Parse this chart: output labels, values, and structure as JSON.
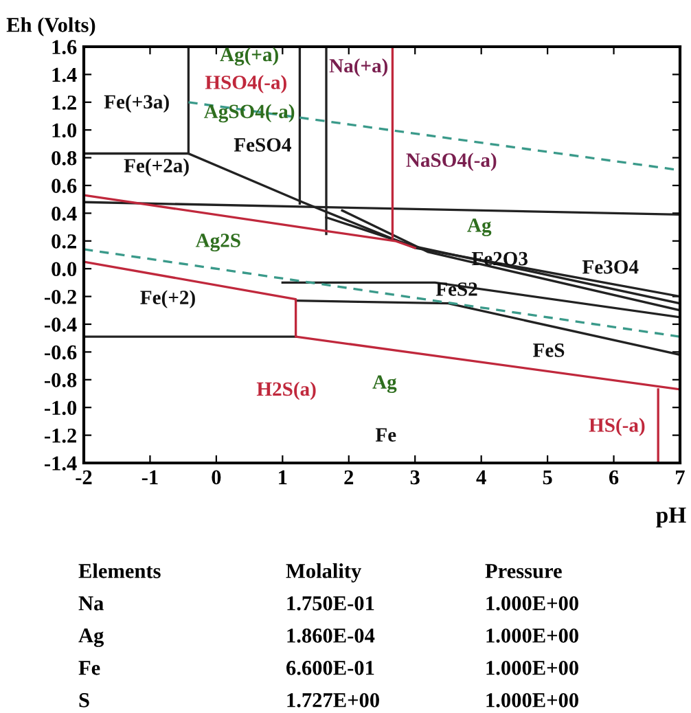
{
  "chart_data": {
    "type": "line",
    "xlabel": "pH",
    "ylabel": "Eh (Volts)",
    "xlim": [
      -2,
      7
    ],
    "ylim": [
      -1.4,
      1.6
    ],
    "xticks": [
      -2,
      -1,
      0,
      1,
      2,
      3,
      4,
      5,
      6,
      7
    ],
    "yticks": [
      {
        "value": -1.4,
        "label": "-1.4"
      },
      {
        "value": -1.2,
        "label": "-1.2"
      },
      {
        "value": -1.0,
        "label": "-1.0"
      },
      {
        "value": -0.8,
        "label": "-0.8"
      },
      {
        "value": -0.6,
        "label": "-0.6"
      },
      {
        "value": -0.4,
        "label": "-0.4"
      },
      {
        "value": -0.2,
        "label": "-0.2"
      },
      {
        "value": 0.0,
        "label": "0.0"
      },
      {
        "value": 0.2,
        "label": "0.2"
      },
      {
        "value": 0.4,
        "label": "0.4"
      },
      {
        "value": 0.6,
        "label": "0.6"
      },
      {
        "value": 0.8,
        "label": "0.8"
      },
      {
        "value": 1.0,
        "label": "1.0"
      },
      {
        "value": 1.2,
        "label": "1.2"
      },
      {
        "value": 1.4,
        "label": "1.4"
      },
      {
        "value": 1.6,
        "label": "1.6"
      }
    ],
    "grid": false,
    "legend": false,
    "marker": "none",
    "series": [
      {
        "color": "#222222",
        "line_style": "solid",
        "x": [
          -2,
          -0.42,
          -0.42
        ],
        "values": [
          0.83,
          0.83,
          1.6
        ]
      },
      {
        "color": "#222222",
        "line_style": "solid",
        "x": [
          -0.42,
          1.3,
          3.0,
          7
        ],
        "values": [
          0.83,
          0.48,
          0.15,
          -0.2
        ]
      },
      {
        "color": "#222222",
        "line_style": "solid",
        "x": [
          -2,
          7
        ],
        "values": [
          0.48,
          0.39
        ]
      },
      {
        "color": "#222222",
        "line_style": "solid",
        "x": [
          1.26,
          1.26
        ],
        "values": [
          1.6,
          0.47
        ]
      },
      {
        "color": "#222222",
        "line_style": "solid",
        "x": [
          1.66,
          1.66
        ],
        "values": [
          1.6,
          0.25
        ]
      },
      {
        "color": "#222222",
        "line_style": "solid",
        "x": [
          1.66,
          3.0,
          7
        ],
        "values": [
          0.37,
          0.16,
          -0.25
        ]
      },
      {
        "color": "#222222",
        "line_style": "solid",
        "x": [
          1.9,
          3.2,
          7
        ],
        "values": [
          0.42,
          0.12,
          -0.3
        ]
      },
      {
        "color": "#222222",
        "line_style": "solid",
        "x": [
          1.0,
          3.3,
          7
        ],
        "values": [
          -0.1,
          -0.1,
          -0.35
        ]
      },
      {
        "color": "#222222",
        "line_style": "solid",
        "x": [
          1.2,
          3.5,
          7
        ],
        "values": [
          -0.23,
          -0.25,
          -0.62
        ]
      },
      {
        "color": "#222222",
        "line_style": "solid",
        "x": [
          -2,
          1.2
        ],
        "values": [
          -0.49,
          -0.49
        ]
      },
      {
        "color": "#c0283c",
        "line_style": "solid",
        "x": [
          -2,
          1.68,
          2.7,
          3.0
        ],
        "values": [
          0.53,
          0.27,
          0.2,
          0.15
        ]
      },
      {
        "color": "#c0283c",
        "line_style": "solid",
        "x": [
          2.66,
          2.66
        ],
        "values": [
          1.6,
          0.22
        ]
      },
      {
        "color": "#c0283c",
        "line_style": "solid",
        "x": [
          -2,
          1.2,
          1.2,
          7
        ],
        "values": [
          0.05,
          -0.22,
          -0.49,
          -0.87
        ]
      },
      {
        "color": "#c0283c",
        "line_style": "solid",
        "x": [
          6.67,
          6.67
        ],
        "values": [
          -0.87,
          -1.4
        ]
      },
      {
        "color": "#3a9a8a",
        "line_style": "dashed",
        "x": [
          -0.42,
          7
        ],
        "values": [
          1.2,
          0.71
        ]
      },
      {
        "color": "#3a9a8a",
        "line_style": "dashed",
        "x": [
          -2,
          7
        ],
        "values": [
          0.14,
          -0.49
        ]
      }
    ],
    "annotations": [
      "Ag(+a)",
      "HSO4(-a)",
      "AgSO4(-a)",
      "Fe(+3a)",
      "FeSO4",
      "Fe(+2a)",
      "Na(+a)",
      "NaSO4(-a)",
      "Ag",
      "Fe2O3",
      "Fe3O4",
      "FeS2",
      "Ag2S",
      "Fe(+2)",
      "H2S(a)",
      "Ag",
      "FeS",
      "Fe",
      "HS(-a)",
      "Elements",
      "Molality",
      "Pressure",
      "Na",
      "1.750E-01",
      "1.000E+00",
      "Ag",
      "1.860E-04",
      "1.000E+00",
      "Fe",
      "6.600E-01",
      "1.000E+00",
      "S",
      "1.727E+00",
      "1.000E+00"
    ]
  }
}
